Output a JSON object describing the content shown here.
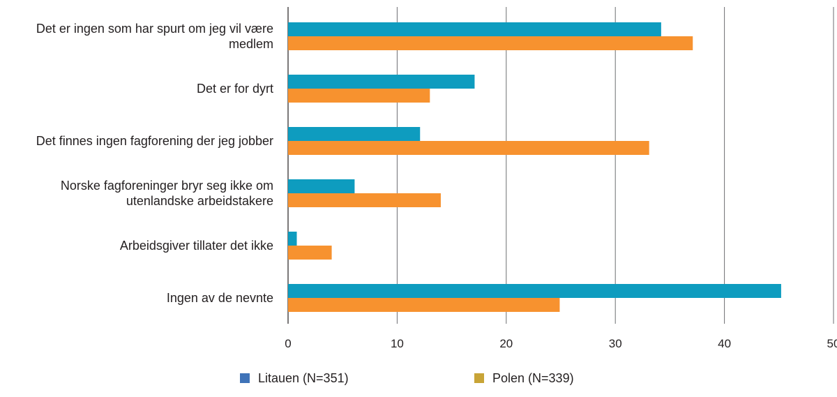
{
  "chart_data": {
    "type": "bar",
    "orientation": "horizontal",
    "title": "",
    "xlabel": "",
    "ylabel": "",
    "xlim": [
      0,
      50
    ],
    "xticks": [
      0,
      10,
      20,
      30,
      40,
      50
    ],
    "grid": "vertical",
    "legend_position": "bottom",
    "categories": [
      [
        "Det er ingen som har spurt om jeg vil være",
        "medlem"
      ],
      [
        "Det er for dyrt"
      ],
      [
        "Det finnes ingen fagforening der jeg jobber"
      ],
      [
        "Norske fagforeninger bryr seg ikke om",
        "utenlandske arbeidstakere"
      ],
      [
        "Arbeidsgiver tillater det ikke"
      ],
      [
        "Ingen av de nevnte"
      ]
    ],
    "series": [
      {
        "name": "Litauen (N=351)",
        "color": "#0e9cbf",
        "legend_color": "#3f73b8",
        "values": [
          34.2,
          17.1,
          12.1,
          6.1,
          0.8,
          45.2
        ]
      },
      {
        "name": "Polen (N=339)",
        "color": "#f7922f",
        "legend_color": "#c8a437",
        "values": [
          37.1,
          13.0,
          33.1,
          14.0,
          4.0,
          24.9
        ]
      }
    ]
  }
}
